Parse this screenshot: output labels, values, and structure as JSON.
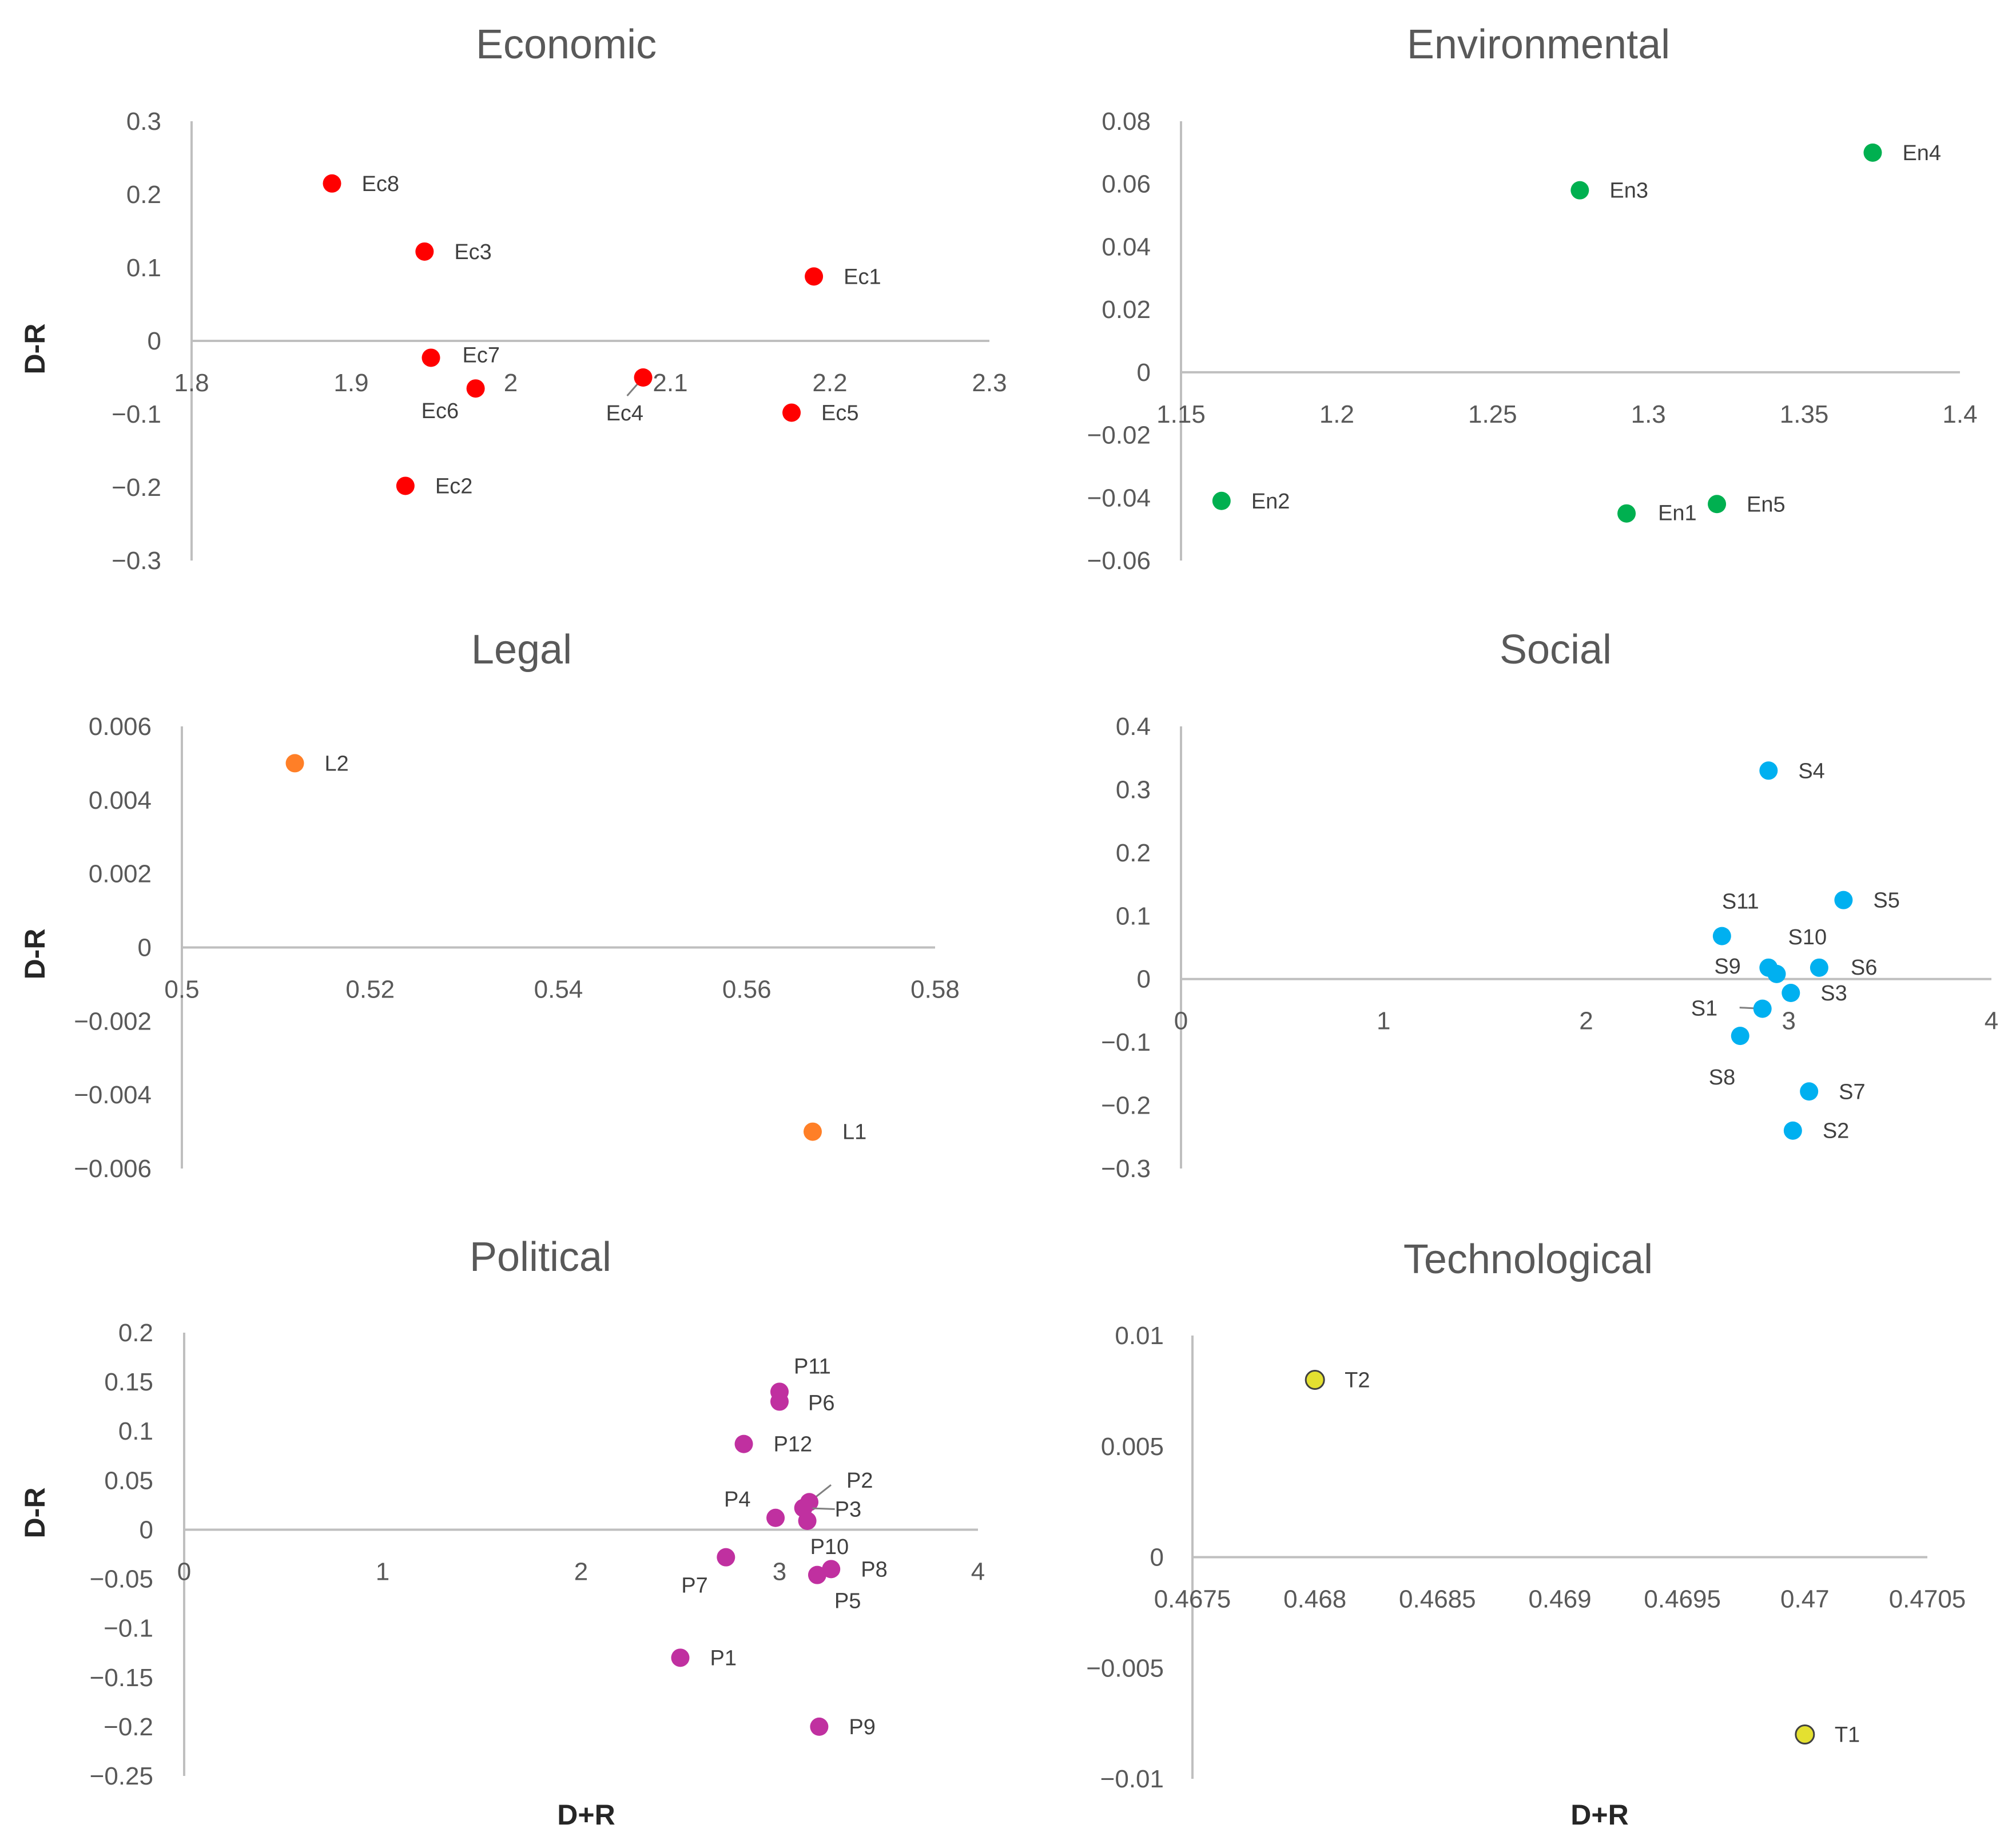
{
  "figure": {
    "y_axis_label": "D-R",
    "x_axis_label": "D+R"
  },
  "chart_data": [
    {
      "type": "scatter",
      "title": "Economic",
      "xlabel": "",
      "ylabel": "D-R",
      "xlim": [
        1.8,
        2.3
      ],
      "ylim": [
        -0.3,
        0.3
      ],
      "xticks": [
        "1.8",
        "1.9",
        "2",
        "2.1",
        "2.2",
        "2.3"
      ],
      "yticks": [
        "0.3",
        "0.2",
        "0.1",
        "0",
        "−0.1",
        "−0.2",
        "−0.3"
      ],
      "color": "#ff0000",
      "points": [
        {
          "label": "Ec8",
          "x": 1.888,
          "y": 0.215
        },
        {
          "label": "Ec3",
          "x": 1.946,
          "y": 0.122
        },
        {
          "label": "Ec1",
          "x": 2.19,
          "y": 0.088
        },
        {
          "label": "Ec7",
          "x": 1.95,
          "y": -0.023
        },
        {
          "label": "Ec6",
          "x": 1.978,
          "y": -0.065
        },
        {
          "label": "Ec4",
          "x": 2.083,
          "y": -0.05
        },
        {
          "label": "Ec5",
          "x": 2.176,
          "y": -0.098
        },
        {
          "label": "Ec2",
          "x": 1.934,
          "y": -0.198
        }
      ]
    },
    {
      "type": "scatter",
      "title": "Environmental",
      "xlabel": "",
      "ylabel": "",
      "xlim": [
        1.15,
        1.4
      ],
      "ylim": [
        -0.06,
        0.08
      ],
      "xticks": [
        "1.15",
        "1.2",
        "1.25",
        "1.3",
        "1.35",
        "1.4"
      ],
      "yticks": [
        "0.08",
        "0.06",
        "0.04",
        "0.02",
        "0",
        "−0.02",
        "−0.04",
        "−0.06"
      ],
      "color": "#00b050",
      "points": [
        {
          "label": "En4",
          "x": 1.372,
          "y": 0.07
        },
        {
          "label": "En3",
          "x": 1.278,
          "y": 0.058
        },
        {
          "label": "En2",
          "x": 1.163,
          "y": -0.041
        },
        {
          "label": "En1",
          "x": 1.293,
          "y": -0.045
        },
        {
          "label": "En5",
          "x": 1.322,
          "y": -0.042
        }
      ]
    },
    {
      "type": "scatter",
      "title": "Legal",
      "xlabel": "",
      "ylabel": "D-R",
      "xlim": [
        0.5,
        0.58
      ],
      "ylim": [
        -0.006,
        0.006
      ],
      "xticks": [
        "0.5",
        "0.52",
        "0.54",
        "0.56",
        "0.58"
      ],
      "yticks": [
        "0.006",
        "0.004",
        "0.002",
        "0",
        "−0.002",
        "−0.004",
        "−0.006"
      ],
      "color": "#ff7f27",
      "points": [
        {
          "label": "L2",
          "x": 0.512,
          "y": 0.005
        },
        {
          "label": "L1",
          "x": 0.567,
          "y": -0.005
        }
      ]
    },
    {
      "type": "scatter",
      "title": "Social",
      "xlabel": "",
      "ylabel": "",
      "xlim": [
        0,
        4
      ],
      "ylim": [
        -0.3,
        0.4
      ],
      "xticks": [
        "0",
        "1",
        "2",
        "3",
        "4"
      ],
      "yticks": [
        "0.4",
        "0.3",
        "0.2",
        "0.1",
        "0",
        "−0.1",
        "−0.2",
        "−0.3"
      ],
      "color": "#00b0f0",
      "points": [
        {
          "label": "S4",
          "x": 2.9,
          "y": 0.33
        },
        {
          "label": "S5",
          "x": 3.27,
          "y": 0.125
        },
        {
          "label": "S11",
          "x": 2.67,
          "y": 0.068
        },
        {
          "label": "S10",
          "x": 2.94,
          "y": 0.008
        },
        {
          "label": "S9",
          "x": 2.9,
          "y": 0.018
        },
        {
          "label": "S6",
          "x": 3.15,
          "y": 0.018
        },
        {
          "label": "S3",
          "x": 3.01,
          "y": -0.022
        },
        {
          "label": "S1",
          "x": 2.87,
          "y": -0.047
        },
        {
          "label": "S8",
          "x": 2.76,
          "y": -0.09
        },
        {
          "label": "S7",
          "x": 3.1,
          "y": -0.178
        },
        {
          "label": "S2",
          "x": 3.02,
          "y": -0.24
        }
      ]
    },
    {
      "type": "scatter",
      "title": "Political",
      "xlabel": "D+R",
      "ylabel": "D-R",
      "xlim": [
        0,
        4
      ],
      "ylim": [
        -0.25,
        0.2
      ],
      "xticks": [
        "0",
        "1",
        "2",
        "3",
        "4"
      ],
      "yticks": [
        "0.2",
        "0.15",
        "0.1",
        "0.05",
        "0",
        "−0.05",
        "−0.1",
        "−0.15",
        "−0.2",
        "−0.25"
      ],
      "color": "#c030a0",
      "points": [
        {
          "label": "P11",
          "x": 3.0,
          "y": 0.14
        },
        {
          "label": "P6",
          "x": 3.0,
          "y": 0.13
        },
        {
          "label": "P12",
          "x": 2.82,
          "y": 0.087
        },
        {
          "label": "P2",
          "x": 3.15,
          "y": 0.028
        },
        {
          "label": "P3",
          "x": 3.12,
          "y": 0.022
        },
        {
          "label": "P4",
          "x": 2.98,
          "y": 0.012
        },
        {
          "label": "P10",
          "x": 3.14,
          "y": 0.009
        },
        {
          "label": "P7",
          "x": 2.73,
          "y": -0.028
        },
        {
          "label": "P8",
          "x": 3.26,
          "y": -0.04
        },
        {
          "label": "P5",
          "x": 3.19,
          "y": -0.046
        },
        {
          "label": "P1",
          "x": 2.5,
          "y": -0.13
        },
        {
          "label": "P9",
          "x": 3.2,
          "y": -0.2
        }
      ]
    },
    {
      "type": "scatter",
      "title": "Technological",
      "xlabel": "D+R",
      "ylabel": "",
      "xlim": [
        0.4675,
        0.4705
      ],
      "ylim": [
        -0.01,
        0.01
      ],
      "xticks": [
        "0.4675",
        "0.468",
        "0.4685",
        "0.469",
        "0.4695",
        "0.47",
        "0.4705"
      ],
      "yticks": [
        "0.01",
        "0.005",
        "0",
        "−0.005",
        "−0.01"
      ],
      "color": "#e4e030",
      "stroke": "#404040",
      "points": [
        {
          "label": "T2",
          "x": 0.468,
          "y": 0.008
        },
        {
          "label": "T1",
          "x": 0.47,
          "y": -0.008
        }
      ]
    }
  ]
}
